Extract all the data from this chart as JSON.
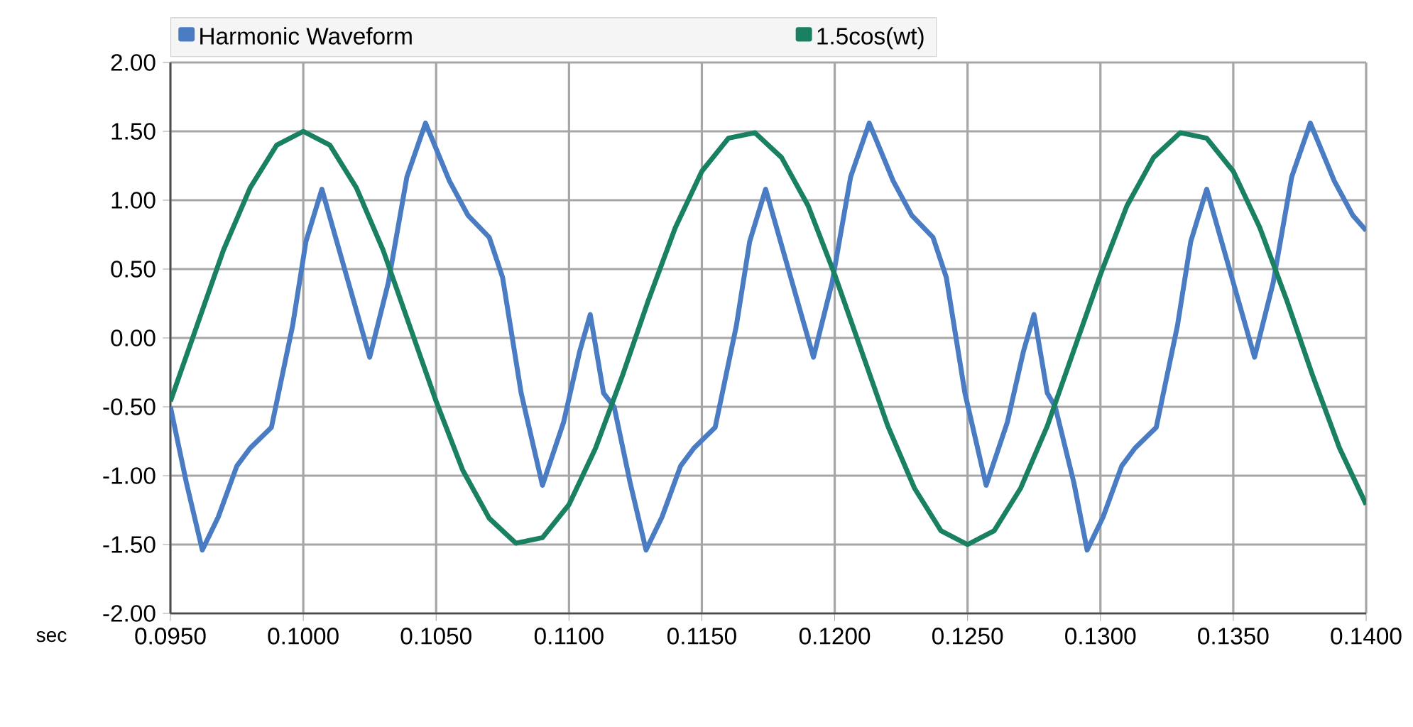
{
  "chart_data": {
    "type": "line",
    "xlabel": "sec",
    "legend": "top",
    "grid": true,
    "marker": "none",
    "line_style": "solid",
    "xlim": [
      0.095,
      0.14
    ],
    "ylim": [
      -2.0,
      2.0
    ],
    "xticks": [
      {
        "value": 0.095,
        "label": "0.0950"
      },
      {
        "value": 0.1,
        "label": "0.1000"
      },
      {
        "value": 0.105,
        "label": "0.1050"
      },
      {
        "value": 0.11,
        "label": "0.1100"
      },
      {
        "value": 0.115,
        "label": "0.1150"
      },
      {
        "value": 0.12,
        "label": "0.1200"
      },
      {
        "value": 0.125,
        "label": "0.1250"
      },
      {
        "value": 0.13,
        "label": "0.1300"
      },
      {
        "value": 0.135,
        "label": "0.1350"
      },
      {
        "value": 0.14,
        "label": "0.1400"
      }
    ],
    "yticks": [
      {
        "value": 2.0,
        "label": "2.00"
      },
      {
        "value": 1.5,
        "label": "1.50"
      },
      {
        "value": 1.0,
        "label": "1.00"
      },
      {
        "value": 0.5,
        "label": "0.50"
      },
      {
        "value": 0.0,
        "label": "0.00"
      },
      {
        "value": -0.5,
        "label": "-0.50"
      },
      {
        "value": -1.0,
        "label": "-1.00"
      },
      {
        "value": -1.5,
        "label": "-1.50"
      },
      {
        "value": -2.0,
        "label": "-2.00"
      }
    ],
    "series": [
      {
        "name": "Harmonic Waveform",
        "color": "#4a7cc4",
        "x": [
          0.095,
          0.0956,
          0.0962,
          0.0968,
          0.0975,
          0.098,
          0.0988,
          0.0996,
          0.1001,
          0.1007,
          0.1016,
          0.1025,
          0.1032,
          0.1039,
          0.1046,
          0.1055,
          0.1062,
          0.107,
          0.1075,
          0.1082,
          0.109,
          0.1098,
          0.1104,
          0.1108,
          0.1113,
          0.1117,
          0.1123,
          0.1129,
          0.1135,
          0.1142,
          0.1147,
          0.1155,
          0.1163,
          0.1168,
          0.1174,
          0.1183,
          0.1192,
          0.1199,
          0.1206,
          0.1213,
          0.1222,
          0.1229,
          0.1237,
          0.1242,
          0.1249,
          0.1257,
          0.1265,
          0.1271,
          0.1275,
          0.128,
          0.1283,
          0.129,
          0.1295,
          0.1301,
          0.1308,
          0.1313,
          0.1321,
          0.1329,
          0.1334,
          0.134,
          0.1349,
          0.1358,
          0.1365,
          0.1372,
          0.1379,
          0.1388,
          0.1395,
          0.14
        ],
        "values": [
          -0.5,
          -1.05,
          -1.54,
          -1.3,
          -0.93,
          -0.8,
          -0.65,
          0.09,
          0.7,
          1.08,
          0.47,
          -0.14,
          0.4,
          1.17,
          1.56,
          1.14,
          0.89,
          0.73,
          0.44,
          -0.4,
          -1.07,
          -0.61,
          -0.1,
          0.17,
          -0.4,
          -0.5,
          -1.05,
          -1.54,
          -1.3,
          -0.93,
          -0.8,
          -0.65,
          0.09,
          0.7,
          1.08,
          0.47,
          -0.14,
          0.4,
          1.17,
          1.56,
          1.14,
          0.89,
          0.73,
          0.44,
          -0.4,
          -1.07,
          -0.61,
          -0.1,
          0.17,
          -0.4,
          -0.5,
          -1.05,
          -1.54,
          -1.3,
          -0.93,
          -0.8,
          -0.65,
          0.09,
          0.7,
          1.08,
          0.47,
          -0.14,
          0.4,
          1.17,
          1.56,
          1.14,
          0.89,
          0.78
        ]
      },
      {
        "name": "1.5cos(wt)",
        "color": "#1a8062",
        "x": [
          0.095,
          0.096,
          0.097,
          0.098,
          0.099,
          0.1,
          0.101,
          0.102,
          0.103,
          0.104,
          0.105,
          0.106,
          0.107,
          0.108,
          0.109,
          0.11,
          0.111,
          0.112,
          0.113,
          0.114,
          0.115,
          0.116,
          0.117,
          0.118,
          0.119,
          0.12,
          0.121,
          0.122,
          0.123,
          0.124,
          0.125,
          0.126,
          0.127,
          0.128,
          0.129,
          0.13,
          0.131,
          0.132,
          0.133,
          0.134,
          0.135,
          0.136,
          0.137,
          0.138,
          0.139,
          0.14
        ],
        "values": [
          -0.46,
          0.09,
          0.64,
          1.09,
          1.4,
          1.5,
          1.4,
          1.09,
          0.64,
          0.09,
          -0.46,
          -0.96,
          -1.31,
          -1.49,
          -1.45,
          -1.21,
          -0.8,
          -0.28,
          0.28,
          0.8,
          1.21,
          1.45,
          1.49,
          1.31,
          0.96,
          0.46,
          -0.09,
          -0.64,
          -1.09,
          -1.4,
          -1.5,
          -1.4,
          -1.09,
          -0.64,
          -0.09,
          0.46,
          0.96,
          1.31,
          1.49,
          1.45,
          1.21,
          0.8,
          0.28,
          -0.28,
          -0.8,
          -1.21
        ]
      }
    ]
  }
}
